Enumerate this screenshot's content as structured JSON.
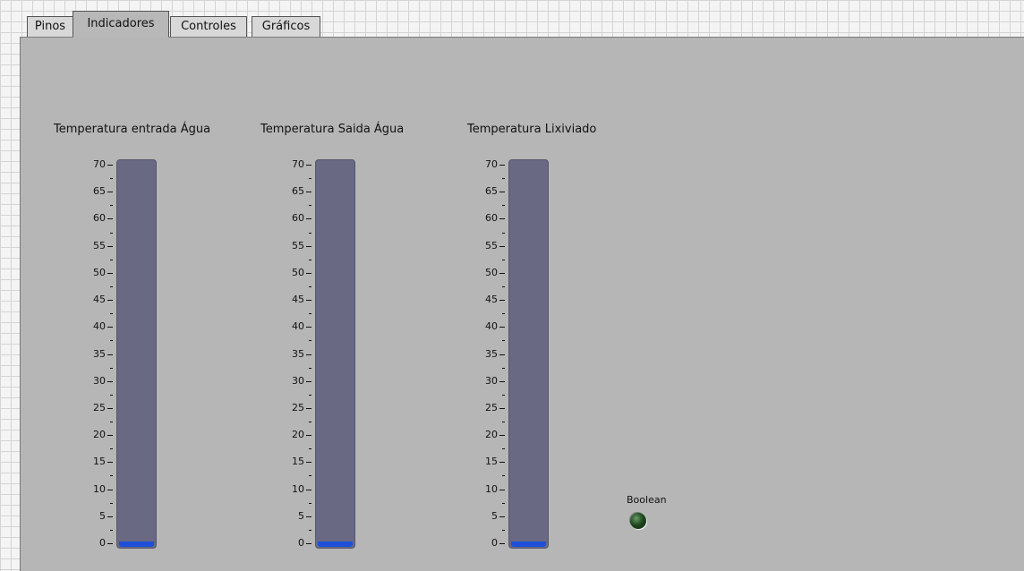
{
  "tabs": [
    {
      "label": "Pinos",
      "active": false
    },
    {
      "label": "Indicadores",
      "active": true
    },
    {
      "label": "Controles",
      "active": false
    },
    {
      "label": "Gráficos",
      "active": false
    }
  ],
  "gauges": [
    {
      "title": "Temperatura entrada Água",
      "value": 0,
      "max": 70
    },
    {
      "title": "Temperatura Saida Água",
      "value": 0,
      "max": 70
    },
    {
      "title": "Temperatura Lixiviado",
      "value": 0,
      "max": 70
    }
  ],
  "scale_ticks": [
    "70",
    "65",
    "60",
    "55",
    "50",
    "45",
    "40",
    "35",
    "30",
    "25",
    "20",
    "15",
    "10",
    "5",
    "0"
  ],
  "boolean_indicator": {
    "label": "Boolean",
    "state": false
  },
  "colors": {
    "tank": "#696984",
    "fill": "#1e4fd8",
    "panel": "#b6b6b6",
    "led_off": "#1f4a1f"
  }
}
